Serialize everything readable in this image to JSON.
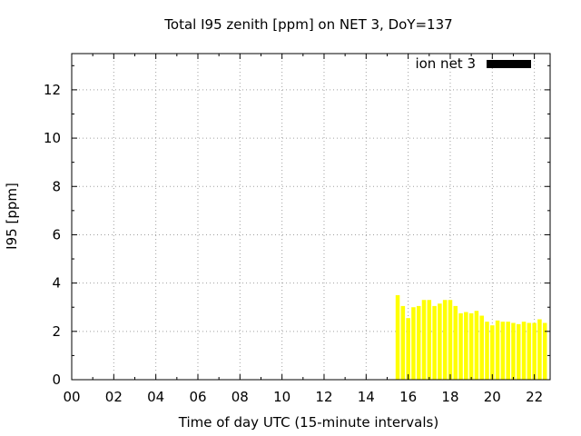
{
  "chart_data": {
    "type": "bar",
    "title": "Total I95 zenith [ppm] on NET 3, DoY=137",
    "xlabel": "Time of day UTC (15-minute intervals)",
    "ylabel": "I95 [ppm]",
    "xlim": [
      0,
      22.75
    ],
    "ylim": [
      0,
      13.5
    ],
    "xticks": [
      "00",
      "02",
      "04",
      "06",
      "08",
      "10",
      "12",
      "14",
      "16",
      "18",
      "20",
      "22"
    ],
    "yticks": [
      "0",
      "2",
      "4",
      "6",
      "8",
      "10",
      "12"
    ],
    "grid": true,
    "legend_position": "top-right",
    "series": [
      {
        "name": "ion net 3",
        "color": "#ffff00",
        "x": [
          15.5,
          15.75,
          16.0,
          16.25,
          16.5,
          16.75,
          17.0,
          17.25,
          17.5,
          17.75,
          18.0,
          18.25,
          18.5,
          18.75,
          19.0,
          19.25,
          19.5,
          19.75,
          20.0,
          20.25,
          20.5,
          20.75,
          21.0,
          21.25,
          21.5,
          21.75,
          22.0,
          22.25,
          22.5
        ],
        "values": [
          3.5,
          3.05,
          2.55,
          3.0,
          3.05,
          3.3,
          3.3,
          3.05,
          3.15,
          3.3,
          3.3,
          3.05,
          2.75,
          2.8,
          2.75,
          2.85,
          2.65,
          2.4,
          2.25,
          2.45,
          2.4,
          2.4,
          2.35,
          2.3,
          2.4,
          2.35,
          2.35,
          2.5,
          2.35
        ]
      }
    ]
  }
}
